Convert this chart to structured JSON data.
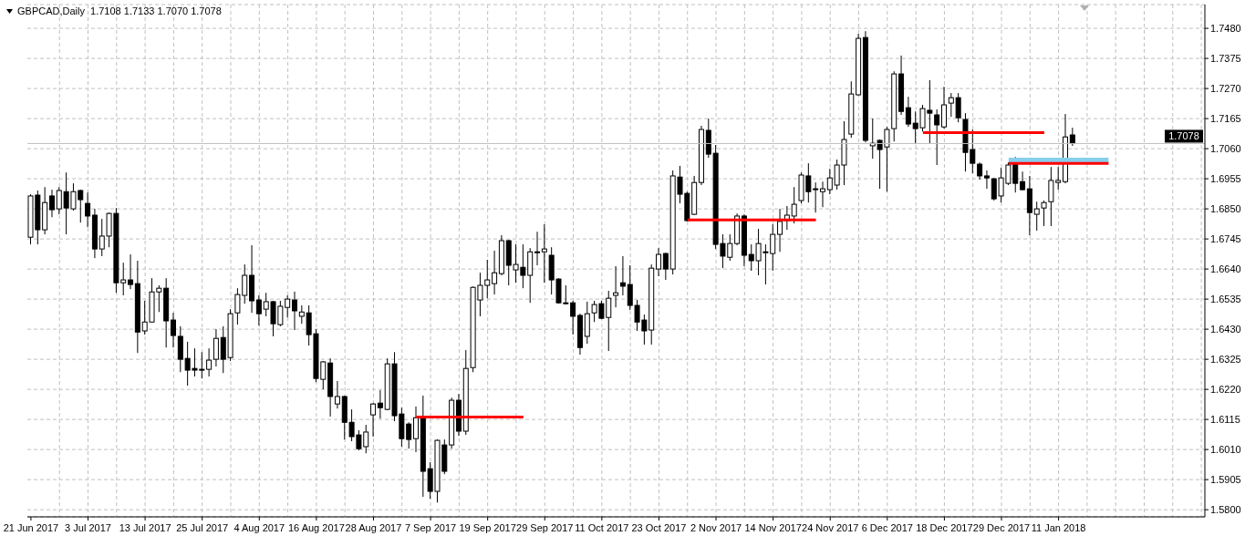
{
  "chart_data": {
    "type": "candlestick",
    "title": "GBPCAD,Daily  1.7108 1.7133 1.7070 1.7078",
    "categories": [
      "21 Jun 2017",
      null,
      null,
      null,
      null,
      null,
      null,
      null,
      "3 Jul 2017",
      null,
      null,
      null,
      null,
      null,
      null,
      null,
      "13 Jul 2017",
      null,
      null,
      null,
      null,
      null,
      null,
      null,
      "25 Jul 2017",
      null,
      null,
      null,
      null,
      null,
      null,
      null,
      "4 Aug 2017",
      null,
      null,
      null,
      null,
      null,
      null,
      null,
      "16 Aug 2017",
      null,
      null,
      null,
      null,
      null,
      null,
      null,
      "28 Aug 2017",
      null,
      null,
      null,
      null,
      null,
      null,
      null,
      "7 Sep 2017",
      null,
      null,
      null,
      null,
      null,
      null,
      null,
      "19 Sep 2017",
      null,
      null,
      null,
      null,
      null,
      null,
      null,
      "29 Sep 2017",
      null,
      null,
      null,
      null,
      null,
      null,
      null,
      "11 Oct 2017",
      null,
      null,
      null,
      null,
      null,
      null,
      null,
      "23 Oct 2017",
      null,
      null,
      null,
      null,
      null,
      null,
      null,
      "2 Nov 2017",
      null,
      null,
      null,
      null,
      null,
      null,
      null,
      "14 Nov 2017",
      null,
      null,
      null,
      null,
      null,
      null,
      null,
      "24 Nov 2017",
      null,
      null,
      null,
      null,
      null,
      null,
      null,
      "6 Dec 2017",
      null,
      null,
      null,
      null,
      null,
      null,
      null,
      "18 Dec 2017",
      null,
      null,
      null,
      null,
      null,
      null,
      null,
      "29 Dec 2017",
      null,
      null,
      null,
      null,
      null,
      null,
      null,
      "11 Jan 2018",
      null,
      null,
      null,
      null,
      null,
      null,
      null,
      null,
      null,
      null,
      null,
      null,
      null,
      null,
      null,
      null,
      null,
      null,
      null,
      null
    ],
    "ohlc": [
      [
        1.6751,
        1.6901,
        1.6726,
        1.6895
      ],
      [
        1.6898,
        1.6914,
        1.6726,
        1.6777
      ],
      [
        1.6777,
        1.6926,
        1.6761,
        1.6872
      ],
      [
        1.6895,
        1.6917,
        1.6821,
        1.6847
      ],
      [
        1.685,
        1.6926,
        1.6831,
        1.6914
      ],
      [
        1.691,
        1.6977,
        1.6761,
        1.6853
      ],
      [
        1.685,
        1.6939,
        1.6844,
        1.691
      ],
      [
        1.6914,
        1.6917,
        1.6802,
        1.6882
      ],
      [
        1.6869,
        1.6907,
        1.6786,
        1.6825
      ],
      [
        1.6828,
        1.685,
        1.6678,
        1.671
      ],
      [
        1.671,
        1.6815,
        1.6685,
        1.6755
      ],
      [
        1.6755,
        1.6837,
        1.6716,
        1.6834
      ],
      [
        1.6834,
        1.6853,
        1.6557,
        1.6592
      ],
      [
        1.6592,
        1.6662,
        1.6548,
        1.6602
      ],
      [
        1.6602,
        1.6691,
        1.657,
        1.6586
      ],
      [
        1.6589,
        1.6669,
        1.6347,
        1.642
      ],
      [
        1.6424,
        1.6529,
        1.6411,
        1.6455
      ],
      [
        1.6455,
        1.6608,
        1.6455,
        1.656
      ],
      [
        1.656,
        1.6583,
        1.649,
        1.6573
      ],
      [
        1.6573,
        1.6608,
        1.6366,
        1.6459
      ],
      [
        1.6462,
        1.6487,
        1.6366,
        1.6408
      ],
      [
        1.6405,
        1.644,
        1.628,
        1.6325
      ],
      [
        1.6328,
        1.6386,
        1.6233,
        1.6287
      ],
      [
        1.6293,
        1.6363,
        1.6265,
        1.6287
      ],
      [
        1.6287,
        1.635,
        1.6258,
        1.629
      ],
      [
        1.629,
        1.6363,
        1.6265,
        1.6322
      ],
      [
        1.6325,
        1.643,
        1.63,
        1.6398
      ],
      [
        1.6401,
        1.644,
        1.6277,
        1.6325
      ],
      [
        1.6331,
        1.65,
        1.6319,
        1.6484
      ],
      [
        1.6487,
        1.6573,
        1.6446,
        1.6551
      ],
      [
        1.6548,
        1.6656,
        1.6519,
        1.6618
      ],
      [
        1.6618,
        1.6723,
        1.6487,
        1.6529
      ],
      [
        1.6532,
        1.6548,
        1.6443,
        1.6484
      ],
      [
        1.65,
        1.6557,
        1.6475,
        1.6526
      ],
      [
        1.6526,
        1.6529,
        1.6405,
        1.6449
      ],
      [
        1.6446,
        1.6529,
        1.644,
        1.651
      ],
      [
        1.6506,
        1.6548,
        1.6471,
        1.6535
      ],
      [
        1.6532,
        1.6561,
        1.6427,
        1.6494
      ],
      [
        1.6475,
        1.6513,
        1.6449,
        1.649
      ],
      [
        1.6487,
        1.6513,
        1.6373,
        1.6411
      ],
      [
        1.6414,
        1.643,
        1.6245,
        1.6258
      ],
      [
        1.6255,
        1.6319,
        1.622,
        1.6316
      ],
      [
        1.6312,
        1.6328,
        1.6125,
        1.6195
      ],
      [
        1.6169,
        1.6249,
        1.6153,
        1.6195
      ],
      [
        1.6195,
        1.6198,
        1.6045,
        1.6105
      ],
      [
        1.6105,
        1.615,
        1.6039,
        1.6055
      ],
      [
        1.6061,
        1.6077,
        1.6007,
        1.6013
      ],
      [
        1.602,
        1.6096,
        1.5997,
        1.6071
      ],
      [
        1.6131,
        1.6172,
        1.6055,
        1.6169
      ],
      [
        1.6172,
        1.6217,
        1.6118,
        1.6156
      ],
      [
        1.615,
        1.6328,
        1.6147,
        1.6309
      ],
      [
        1.6309,
        1.635,
        1.6109,
        1.6128
      ],
      [
        1.6134,
        1.6156,
        1.602,
        1.6048
      ],
      [
        1.6099,
        1.6105,
        1.6013,
        1.6045
      ],
      [
        1.6048,
        1.616,
        1.6001,
        1.6121
      ],
      [
        1.6118,
        1.6198,
        1.5845,
        1.5934
      ],
      [
        1.5943,
        1.5966,
        1.5838,
        1.5864
      ],
      [
        1.5864,
        1.6045,
        1.5825,
        1.6042
      ],
      [
        1.6026,
        1.6045,
        1.5924,
        1.5934
      ],
      [
        1.6026,
        1.6191,
        1.6013,
        1.6182
      ],
      [
        1.6182,
        1.6204,
        1.6058,
        1.6074
      ],
      [
        1.6074,
        1.6357,
        1.6061,
        1.6293
      ],
      [
        1.6296,
        1.6579,
        1.628,
        1.6576
      ],
      [
        1.6532,
        1.6627,
        1.6475,
        1.6583
      ],
      [
        1.6583,
        1.6672,
        1.6538,
        1.6602
      ],
      [
        1.6589,
        1.6704,
        1.6551,
        1.6627
      ],
      [
        1.6624,
        1.6758,
        1.6618,
        1.6739
      ],
      [
        1.6739,
        1.6742,
        1.6583,
        1.6653
      ],
      [
        1.6637,
        1.6726,
        1.6592,
        1.6656
      ],
      [
        1.6646,
        1.6726,
        1.6573,
        1.6618
      ],
      [
        1.6618,
        1.6713,
        1.6522,
        1.67
      ],
      [
        1.6697,
        1.677,
        1.6653,
        1.67
      ],
      [
        1.67,
        1.6796,
        1.6592,
        1.671
      ],
      [
        1.6688,
        1.6716,
        1.6551,
        1.6602
      ],
      [
        1.6605,
        1.6608,
        1.6519,
        1.6522
      ],
      [
        1.6519,
        1.6583,
        1.6516,
        1.6522
      ],
      [
        1.6522,
        1.6529,
        1.6411,
        1.6475
      ],
      [
        1.6478,
        1.6484,
        1.6341,
        1.6366
      ],
      [
        1.6405,
        1.6526,
        1.6379,
        1.6484
      ],
      [
        1.6487,
        1.6529,
        1.6455,
        1.6516
      ],
      [
        1.6519,
        1.6529,
        1.6465,
        1.6468
      ],
      [
        1.6471,
        1.6564,
        1.6354,
        1.6538
      ],
      [
        1.6548,
        1.665,
        1.6506,
        1.6557
      ],
      [
        1.6592,
        1.6685,
        1.6548,
        1.658
      ],
      [
        1.6586,
        1.6653,
        1.6497,
        1.6513
      ],
      [
        1.6513,
        1.6532,
        1.6424,
        1.6455
      ],
      [
        1.6462,
        1.6481,
        1.6376,
        1.6424
      ],
      [
        1.6427,
        1.6656,
        1.6376,
        1.6643
      ],
      [
        1.664,
        1.6713,
        1.6615,
        1.6691
      ],
      [
        1.6694,
        1.6697,
        1.6602,
        1.664
      ],
      [
        1.664,
        1.6984,
        1.6621,
        1.6965
      ],
      [
        1.6961,
        1.7,
        1.6869,
        1.6901
      ],
      [
        1.6904,
        1.691,
        1.6806,
        1.6809
      ],
      [
        1.6831,
        1.6965,
        1.6828,
        1.6942
      ],
      [
        1.6942,
        1.714,
        1.6933,
        1.7127
      ],
      [
        1.7124,
        1.7165,
        1.7028,
        1.7041
      ],
      [
        1.7044,
        1.7073,
        1.671,
        1.6726
      ],
      [
        1.6729,
        1.6761,
        1.6643,
        1.6685
      ],
      [
        1.6681,
        1.6761,
        1.6669,
        1.6729
      ],
      [
        1.6729,
        1.6834,
        1.6723,
        1.6825
      ],
      [
        1.6825,
        1.6831,
        1.665,
        1.6688
      ],
      [
        1.6691,
        1.6726,
        1.6634,
        1.6669
      ],
      [
        1.6669,
        1.678,
        1.6618,
        1.6729
      ],
      [
        1.6697,
        1.6726,
        1.6586,
        1.67
      ],
      [
        1.6694,
        1.6796,
        1.6634,
        1.6761
      ],
      [
        1.6761,
        1.685,
        1.67,
        1.6806
      ],
      [
        1.6809,
        1.686,
        1.6777,
        1.6828
      ],
      [
        1.6825,
        1.6926,
        1.6799,
        1.6866
      ],
      [
        1.6879,
        1.6977,
        1.6869,
        1.6968
      ],
      [
        1.6965,
        1.7009,
        1.6872,
        1.691
      ],
      [
        1.6917,
        1.6942,
        1.6837,
        1.692
      ],
      [
        1.691,
        1.6945,
        1.6856,
        1.692
      ],
      [
        1.6917,
        1.699,
        1.6901,
        1.6958
      ],
      [
        1.6933,
        1.7022,
        1.6917,
        1.7003
      ],
      [
        1.7003,
        1.7156,
        1.6933,
        1.7092
      ],
      [
        1.7111,
        1.7295,
        1.7098,
        1.7251
      ],
      [
        1.7248,
        1.7461,
        1.7245,
        1.7445
      ],
      [
        1.7448,
        1.747,
        1.7082,
        1.7089
      ],
      [
        1.707,
        1.7165,
        1.7025,
        1.7079
      ],
      [
        1.7089,
        1.7092,
        1.692,
        1.7057
      ],
      [
        1.7066,
        1.7136,
        1.691,
        1.7127
      ],
      [
        1.713,
        1.733,
        1.7085,
        1.7321
      ],
      [
        1.7321,
        1.7385,
        1.7178,
        1.719
      ],
      [
        1.7203,
        1.7241,
        1.7136,
        1.7146
      ],
      [
        1.7149,
        1.719,
        1.7076,
        1.713
      ],
      [
        1.7133,
        1.7213,
        1.712,
        1.72
      ],
      [
        1.7194,
        1.7299,
        1.7079,
        1.7184
      ],
      [
        1.7178,
        1.7197,
        1.7003,
        1.7143
      ],
      [
        1.7136,
        1.7276,
        1.713,
        1.7213
      ],
      [
        1.7219,
        1.7254,
        1.7171,
        1.7238
      ],
      [
        1.7238,
        1.7254,
        1.7152,
        1.7168
      ],
      [
        1.7162,
        1.7184,
        1.698,
        1.7047
      ],
      [
        1.7057,
        1.7127,
        1.6974,
        1.7009
      ],
      [
        1.7006,
        1.7012,
        1.6952,
        1.6965
      ],
      [
        1.6965,
        1.6984,
        1.692,
        1.6958
      ],
      [
        1.6955,
        1.6958,
        1.6879,
        1.6885
      ],
      [
        1.6895,
        1.6993,
        1.6872,
        1.6958
      ],
      [
        1.6939,
        1.7012,
        1.6933,
        1.7003
      ],
      [
        1.7009,
        1.7031,
        1.6907,
        1.6939
      ],
      [
        1.6945,
        1.698,
        1.6914,
        1.6917
      ],
      [
        1.692,
        1.6965,
        1.6758,
        1.6837
      ],
      [
        1.6831,
        1.6875,
        1.6774,
        1.685
      ],
      [
        1.6853,
        1.6879,
        1.679,
        1.6872
      ],
      [
        1.6875,
        1.6996,
        1.679,
        1.6949
      ],
      [
        1.6942,
        1.6996,
        1.6917,
        1.6949
      ],
      [
        1.6945,
        1.7181,
        1.6939,
        1.7101
      ],
      [
        1.7108,
        1.7133,
        1.707,
        1.7078
      ],
      null,
      null,
      null,
      null,
      null,
      null,
      null,
      null,
      null,
      null,
      null,
      null,
      null,
      null,
      null,
      null,
      null,
      null
    ],
    "series": [
      {
        "type": "line",
        "color": "#ff0000",
        "values": [
          null,
          null,
          null,
          null,
          null,
          null,
          null,
          null,
          null,
          null,
          null,
          null,
          null,
          null,
          null,
          null,
          null,
          null,
          null,
          null,
          null,
          null,
          null,
          null,
          null,
          null,
          null,
          null,
          null,
          null,
          null,
          null,
          null,
          null,
          null,
          null,
          null,
          null,
          null,
          null,
          null,
          null,
          null,
          null,
          null,
          null,
          null,
          null,
          null,
          null,
          null,
          null,
          null,
          null,
          1.6123,
          1.6123,
          1.6123,
          1.6123,
          1.6123,
          1.6123,
          1.6123,
          1.6123,
          1.6123,
          1.6123,
          1.6123,
          1.6123,
          1.6123,
          1.6123,
          1.6123,
          1.6123,
          null,
          null,
          null,
          null,
          null,
          null,
          null,
          null,
          null,
          null,
          null,
          null,
          null,
          null,
          null,
          null,
          null,
          null,
          null,
          null,
          null,
          null,
          null,
          null,
          null,
          null,
          null,
          null,
          null,
          null,
          null,
          null,
          null,
          null,
          null,
          null,
          null,
          null,
          null,
          null,
          null,
          null,
          null,
          null,
          null,
          null,
          null,
          null,
          null,
          null,
          null,
          null,
          null,
          null,
          null,
          null,
          null,
          null,
          null,
          null,
          null,
          null,
          null,
          null,
          null,
          null,
          null,
          null,
          null,
          null,
          null,
          null,
          null,
          null,
          null,
          null,
          null,
          null,
          null,
          null,
          null,
          null,
          null,
          null,
          null,
          null,
          null,
          null,
          null,
          null,
          null,
          null,
          null,
          null,
          null
        ]
      },
      {
        "type": "line",
        "color": "#ff0000",
        "values": [
          null,
          null,
          null,
          null,
          null,
          null,
          null,
          null,
          null,
          null,
          null,
          null,
          null,
          null,
          null,
          null,
          null,
          null,
          null,
          null,
          null,
          null,
          null,
          null,
          null,
          null,
          null,
          null,
          null,
          null,
          null,
          null,
          null,
          null,
          null,
          null,
          null,
          null,
          null,
          null,
          null,
          null,
          null,
          null,
          null,
          null,
          null,
          null,
          null,
          null,
          null,
          null,
          null,
          null,
          null,
          null,
          null,
          null,
          null,
          null,
          null,
          null,
          null,
          null,
          null,
          null,
          null,
          null,
          null,
          null,
          null,
          null,
          null,
          null,
          null,
          null,
          null,
          null,
          null,
          null,
          null,
          null,
          null,
          null,
          null,
          null,
          null,
          null,
          null,
          null,
          null,
          null,
          1.6811,
          1.6811,
          1.6811,
          1.6811,
          1.6811,
          1.6811,
          1.6811,
          1.6811,
          1.6811,
          1.6811,
          1.6811,
          1.6811,
          1.6811,
          1.6811,
          1.6811,
          1.6811,
          1.6811,
          1.6811,
          1.6811,
          null,
          null,
          null,
          null,
          null,
          null,
          null,
          null,
          null,
          null,
          null,
          null,
          null,
          null,
          null,
          null,
          null,
          null,
          null,
          null,
          null,
          null,
          null,
          null,
          null,
          null,
          null,
          null,
          null,
          null,
          null,
          null,
          null,
          null,
          null,
          null,
          null,
          null,
          null,
          null,
          null,
          null,
          null,
          null,
          null,
          null,
          null,
          null,
          null,
          null,
          null,
          null,
          null,
          null
        ]
      },
      {
        "type": "line",
        "color": "#ff0000",
        "values": [
          null,
          null,
          null,
          null,
          null,
          null,
          null,
          null,
          null,
          null,
          null,
          null,
          null,
          null,
          null,
          null,
          null,
          null,
          null,
          null,
          null,
          null,
          null,
          null,
          null,
          null,
          null,
          null,
          null,
          null,
          null,
          null,
          null,
          null,
          null,
          null,
          null,
          null,
          null,
          null,
          null,
          null,
          null,
          null,
          null,
          null,
          null,
          null,
          null,
          null,
          null,
          null,
          null,
          null,
          null,
          null,
          null,
          null,
          null,
          null,
          null,
          null,
          null,
          null,
          null,
          null,
          null,
          null,
          null,
          null,
          null,
          null,
          null,
          null,
          null,
          null,
          null,
          null,
          null,
          null,
          null,
          null,
          null,
          null,
          null,
          null,
          null,
          null,
          null,
          null,
          null,
          null,
          null,
          null,
          null,
          null,
          null,
          null,
          null,
          null,
          null,
          null,
          null,
          null,
          null,
          null,
          null,
          null,
          null,
          null,
          null,
          null,
          null,
          null,
          null,
          null,
          null,
          null,
          null,
          null,
          null,
          null,
          null,
          null,
          null,
          1.7116,
          1.7116,
          1.7116,
          1.7116,
          1.7116,
          1.7116,
          1.7116,
          1.7116,
          1.7116,
          1.7116,
          1.7116,
          1.7116,
          1.7116,
          1.7116,
          1.7116,
          1.7116,
          1.7116,
          1.7116,
          null,
          null,
          null,
          null,
          null,
          null,
          null,
          null,
          null,
          null,
          null,
          null,
          null,
          null,
          null,
          null,
          null,
          null,
          null,
          null,
          null,
          null
        ]
      },
      {
        "type": "line",
        "color": "#87ceeb",
        "values": [
          null,
          null,
          null,
          null,
          null,
          null,
          null,
          null,
          null,
          null,
          null,
          null,
          null,
          null,
          null,
          null,
          null,
          null,
          null,
          null,
          null,
          null,
          null,
          null,
          null,
          null,
          null,
          null,
          null,
          null,
          null,
          null,
          null,
          null,
          null,
          null,
          null,
          null,
          null,
          null,
          null,
          null,
          null,
          null,
          null,
          null,
          null,
          null,
          null,
          null,
          null,
          null,
          null,
          null,
          null,
          null,
          null,
          null,
          null,
          null,
          null,
          null,
          null,
          null,
          null,
          null,
          null,
          null,
          null,
          null,
          null,
          null,
          null,
          null,
          null,
          null,
          null,
          null,
          null,
          null,
          null,
          null,
          null,
          null,
          null,
          null,
          null,
          null,
          null,
          null,
          null,
          null,
          null,
          null,
          null,
          null,
          null,
          null,
          null,
          null,
          null,
          null,
          null,
          null,
          null,
          null,
          null,
          null,
          null,
          null,
          null,
          null,
          null,
          null,
          null,
          null,
          null,
          null,
          null,
          null,
          null,
          null,
          null,
          null,
          null,
          null,
          null,
          null,
          null,
          null,
          null,
          null,
          null,
          null,
          null,
          null,
          null,
          1.7019,
          1.7019,
          1.7019,
          1.7019,
          1.7019,
          1.7019,
          1.7019,
          1.7019,
          1.7019,
          1.7019,
          1.7019,
          1.7019,
          1.7019,
          1.7019,
          1.7019,
          null,
          null,
          null,
          null,
          null,
          null,
          null,
          null,
          null,
          null,
          null,
          null,
          null
        ]
      },
      {
        "type": "line",
        "color": "#ff0000",
        "values": [
          null,
          null,
          null,
          null,
          null,
          null,
          null,
          null,
          null,
          null,
          null,
          null,
          null,
          null,
          null,
          null,
          null,
          null,
          null,
          null,
          null,
          null,
          null,
          null,
          null,
          null,
          null,
          null,
          null,
          null,
          null,
          null,
          null,
          null,
          null,
          null,
          null,
          null,
          null,
          null,
          null,
          null,
          null,
          null,
          null,
          null,
          null,
          null,
          null,
          null,
          null,
          null,
          null,
          null,
          null,
          null,
          null,
          null,
          null,
          null,
          null,
          null,
          null,
          null,
          null,
          null,
          null,
          null,
          null,
          null,
          null,
          null,
          null,
          null,
          null,
          null,
          null,
          null,
          null,
          null,
          null,
          null,
          null,
          null,
          null,
          null,
          null,
          null,
          null,
          null,
          null,
          null,
          null,
          null,
          null,
          null,
          null,
          null,
          null,
          null,
          null,
          null,
          null,
          null,
          null,
          null,
          null,
          null,
          null,
          null,
          null,
          null,
          null,
          null,
          null,
          null,
          null,
          null,
          null,
          null,
          null,
          null,
          null,
          null,
          null,
          null,
          null,
          null,
          null,
          null,
          null,
          null,
          null,
          null,
          null,
          null,
          null,
          1.7009,
          1.7009,
          1.7009,
          1.7009,
          1.7009,
          1.7009,
          1.7009,
          1.7009,
          1.7009,
          1.7009,
          1.7009,
          1.7009,
          1.7009,
          1.7009,
          1.7009,
          null,
          null,
          null,
          null,
          null,
          null,
          null,
          null,
          null,
          null,
          null,
          null,
          null
        ]
      }
    ],
    "ylim": [
      1.5775,
      1.7563
    ],
    "yticks": [
      {
        "value": 1.58,
        "label": "1.5800"
      },
      1.5905,
      {
        "value": 1.601,
        "label": "1.6010"
      },
      1.6115,
      {
        "value": 1.622,
        "label": "1.6220"
      },
      1.6325,
      {
        "value": 1.643,
        "label": "1.6430"
      },
      1.6535,
      {
        "value": 1.664,
        "label": "1.6640"
      },
      1.6745,
      {
        "value": 1.685,
        "label": "1.6850"
      },
      1.6955,
      {
        "value": 1.706,
        "label": "1.7060"
      },
      1.7165,
      {
        "value": 1.727,
        "label": "1.7270"
      },
      1.7375,
      {
        "value": 1.748,
        "label": "1.7480"
      }
    ],
    "ref_lines": [
      {
        "axis": "y",
        "value": 1.7078,
        "label": "1.7078",
        "color": "#c0c0c0"
      }
    ],
    "grid": true
  }
}
